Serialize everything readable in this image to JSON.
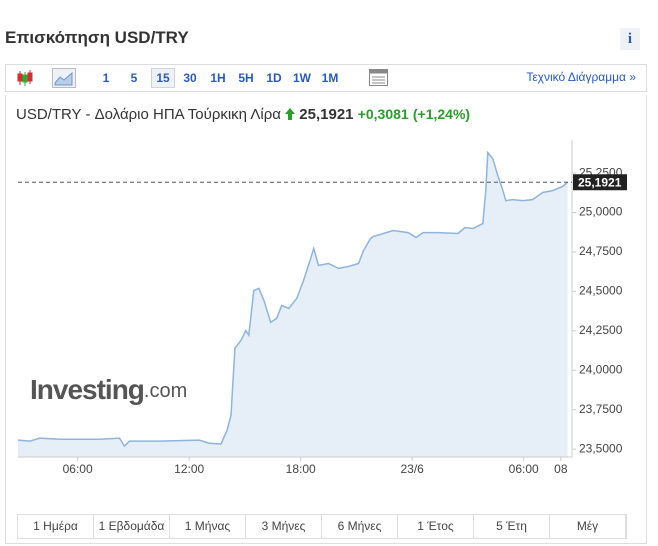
{
  "header": {
    "title": "Επισκόπηση USD/TRY",
    "info": "i"
  },
  "toolbar": {
    "intervals": [
      "1",
      "5",
      "15",
      "30",
      "1H",
      "5H",
      "1D",
      "1W",
      "1M"
    ],
    "active": "15",
    "technical_link": "Τεχνικό Διάγραμμα »"
  },
  "quote": {
    "name": "USD/TRY - Δολάριο ΗΠΑ Τούρκικη Λίρα",
    "price": "25,1921",
    "change": "+0,3081",
    "change_pct": "(+1,24%)"
  },
  "chart_data": {
    "type": "area",
    "color": "#8fb4de",
    "fill": "#e6eef8",
    "x": [
      2.79,
      3.43,
      3.96,
      5.04,
      7.18,
      8.25,
      8.52,
      8.79,
      10.39,
      12.54,
      13.07,
      13.71,
      14.04,
      14.25,
      14.46,
      14.79,
      15.05,
      15.21,
      15.48,
      15.75,
      16.02,
      16.39,
      16.71,
      16.98,
      17.36,
      17.79,
      18.16,
      18.54,
      18.7,
      18.96,
      19.5,
      20.04,
      20.57,
      21.11,
      21.38,
      21.75,
      21.91,
      22.45,
      22.98,
      23.79,
      24.21,
      24.59,
      25.39,
      26.46,
      26.84,
      27.27,
      27.8,
      27.96,
      28.07,
      28.34,
      28.61,
      28.88,
      29.04,
      29.41,
      29.95,
      30.48,
      31.02,
      31.55,
      32.09,
      32.36
    ],
    "values": [
      23.557,
      23.551,
      23.57,
      23.563,
      23.563,
      23.57,
      23.519,
      23.551,
      23.551,
      23.557,
      23.538,
      23.532,
      23.62,
      23.715,
      24.139,
      24.19,
      24.253,
      24.222,
      24.506,
      24.519,
      24.443,
      24.304,
      24.329,
      24.411,
      24.392,
      24.456,
      24.57,
      24.709,
      24.772,
      24.665,
      24.677,
      24.646,
      24.658,
      24.677,
      24.759,
      24.835,
      24.848,
      24.867,
      24.886,
      24.873,
      24.842,
      24.873,
      24.873,
      24.867,
      24.905,
      24.899,
      24.93,
      25.139,
      25.38,
      25.342,
      25.234,
      25.139,
      25.076,
      25.082,
      25.076,
      25.082,
      25.127,
      25.139,
      25.165,
      25.192
    ],
    "xlim": [
      2.79,
      32.6
    ],
    "ylim": [
      23.45,
      25.46
    ],
    "xticks": [
      {
        "value": 6,
        "label": "06:00"
      },
      {
        "value": 12,
        "label": "12:00"
      },
      {
        "value": 18,
        "label": "18:00"
      },
      {
        "value": 24,
        "label": "23/6"
      },
      {
        "value": 30,
        "label": "06:00"
      },
      {
        "value": 32,
        "label": "08"
      }
    ],
    "yticks": [
      {
        "value": 23.5,
        "label": "23,5000"
      },
      {
        "value": 23.75,
        "label": "23,7500"
      },
      {
        "value": 24,
        "label": "24,0000"
      },
      {
        "value": 24.25,
        "label": "24,2500"
      },
      {
        "value": 24.5,
        "label": "24,5000"
      },
      {
        "value": 24.75,
        "label": "24,7500"
      },
      {
        "value": 25,
        "label": "25,0000"
      },
      {
        "value": 25.25,
        "label": "25,2500"
      }
    ],
    "last": {
      "value": 25.1921,
      "label": "25,1921"
    },
    "watermark": {
      "brand": "Investing",
      "suffix": ".com"
    }
  },
  "periods": [
    "1 Ημέρα",
    "1 Εβδομάδα",
    "1 Μήνας",
    "3 Μήνες",
    "6 Μήνες",
    "1 Έτος",
    "5 Έτη",
    "Μέγ"
  ]
}
